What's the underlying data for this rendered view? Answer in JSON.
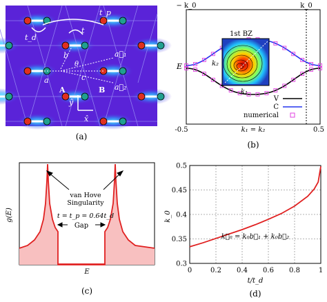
{
  "panel_a": {
    "caption": "(a)",
    "labels": {
      "tp": "t_p",
      "t": "t",
      "td": "t_d",
      "b": "b",
      "theta": "θ",
      "a": "a",
      "c": "c",
      "A": "A",
      "B": "B",
      "a1": "a⃗₁",
      "a2": "a⃗₂",
      "y": "ŷ",
      "x": "x̂"
    },
    "colors": {
      "background": "#5a23d8",
      "bond": "#ffffff",
      "siteA": "#e03020",
      "siteB": "#20a090",
      "glow": "#30c8ff"
    }
  },
  "panel_b": {
    "caption": "(b)",
    "ylabel": "E",
    "top_ticks": [
      "− k_0",
      "k_0"
    ],
    "xticks": [
      "-0.5",
      "0.5"
    ],
    "xlabel": "k₁ = k₂",
    "bz_label": "1st BZ",
    "inset_axes": {
      "k1": "k₁",
      "k2": "k₂"
    },
    "legend": [
      {
        "label": "V",
        "color": "#000000"
      },
      {
        "label": "C",
        "color": "#2233ee"
      },
      {
        "label": "numerical",
        "color": "#e040e0"
      }
    ]
  },
  "panel_c": {
    "caption": "(c)",
    "ylabel": "g(E)",
    "xlabel": "E",
    "annotation": "van Hove\nSingularity",
    "param": "t = t_p = 0.64t_d",
    "gap_label": "Gap",
    "colors": {
      "line": "#e02020",
      "fill": "#f8c0c0"
    }
  },
  "chart_data": {
    "type": "line",
    "title": "",
    "xlabel": "t/t_d",
    "ylabel": "k_0",
    "xlim": [
      0,
      1
    ],
    "ylim": [
      0.3,
      0.5
    ],
    "xticks": [
      "0",
      "0.2",
      "0.4",
      "0.6",
      "0.8",
      "1"
    ],
    "yticks": [
      "0.3",
      "0.35",
      "0.4",
      "0.45",
      "0.5"
    ],
    "grid": true,
    "annotation": "k⃗₀ = k₀b⃗₁ + k₀b⃗₂",
    "series": [
      {
        "color": "#e02020",
        "x": [
          0,
          0.1,
          0.2,
          0.3,
          0.4,
          0.5,
          0.6,
          0.7,
          0.8,
          0.9,
          0.95,
          0.98,
          1.0
        ],
        "y": [
          0.334,
          0.342,
          0.351,
          0.36,
          0.369,
          0.379,
          0.39,
          0.402,
          0.417,
          0.437,
          0.452,
          0.466,
          0.498
        ]
      }
    ],
    "caption": "(d)"
  }
}
